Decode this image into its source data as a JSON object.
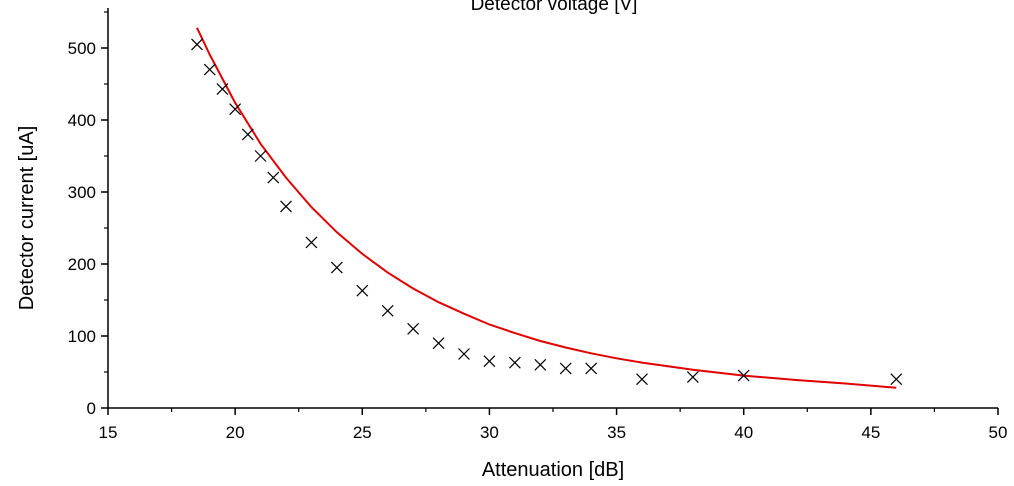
{
  "chart_data": {
    "type": "scatter",
    "top_label": "Detector voltage [V]",
    "xlabel": "Attenuation [dB]",
    "ylabel": "Detector current [uA]",
    "xlim": [
      15,
      50
    ],
    "ylim": [
      0,
      550
    ],
    "x_ticks": [
      15,
      20,
      25,
      30,
      35,
      40,
      45,
      50
    ],
    "y_ticks": [
      0,
      100,
      200,
      300,
      400,
      500
    ],
    "grid": false,
    "legend": "none",
    "series": [
      {
        "marker": "x",
        "color": "#000000",
        "x": [
          18.5,
          19,
          19.5,
          20,
          20.5,
          21,
          21.5,
          22,
          23,
          24,
          25,
          26,
          27,
          28,
          29,
          30,
          31,
          32,
          33,
          34,
          36,
          38,
          40,
          46
        ],
        "y": [
          505,
          470,
          443,
          415,
          380,
          350,
          320,
          280,
          230,
          195,
          163,
          135,
          110,
          90,
          75,
          65,
          63,
          60,
          55,
          55,
          40,
          43,
          45,
          40
        ]
      }
    ],
    "fit": {
      "type": "exponential",
      "color": "#e00000",
      "x": [
        18.5,
        19,
        20,
        21,
        22,
        23,
        24,
        25,
        26,
        27,
        28,
        29,
        30,
        31,
        32,
        33,
        34,
        35,
        36,
        38,
        40,
        42,
        44,
        46
      ],
      "y": [
        528,
        491,
        424,
        367,
        320,
        279,
        244,
        214,
        188,
        166,
        147,
        131,
        116,
        104,
        93,
        84,
        76,
        69,
        63,
        53,
        45,
        39,
        34,
        28
      ]
    }
  }
}
